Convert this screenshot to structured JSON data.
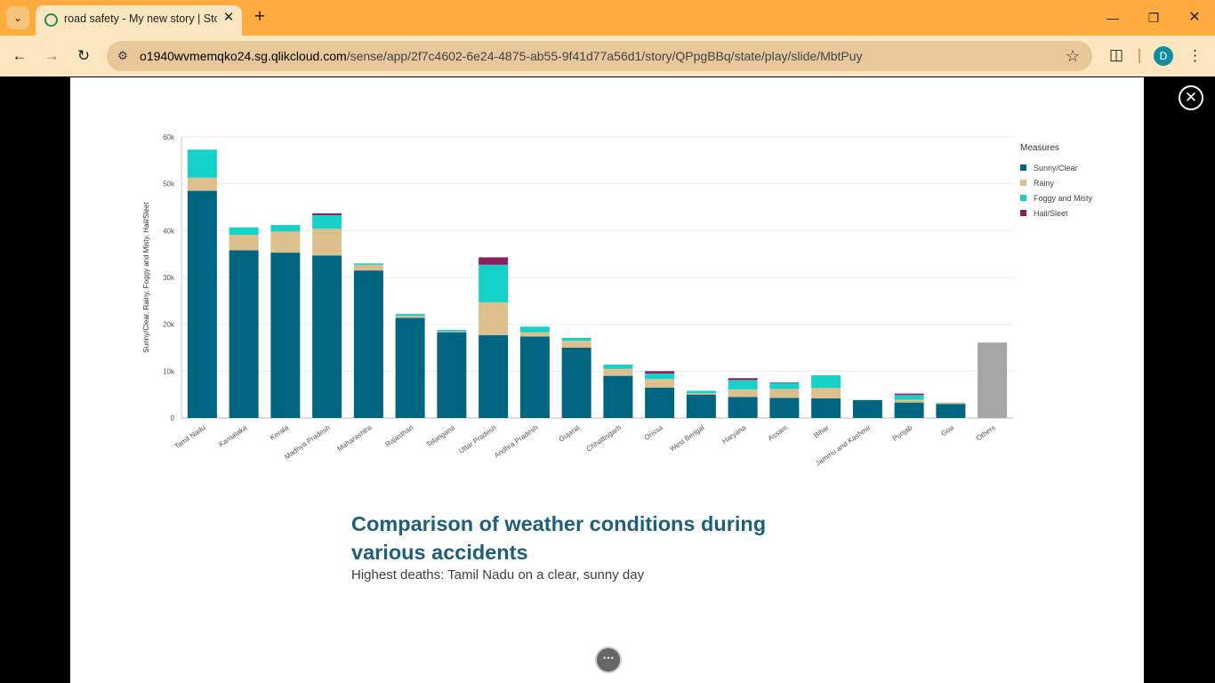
{
  "browser": {
    "tab_title": "road safety - My new story | Sto",
    "url_host": "o1940wvmemqko24.sg.qlikcloud.com",
    "url_path": "/sense/app/2f7c4602-6e24-4875-ab55-9f41d77a56d1/story/QPpgBBq/state/play/slide/MbtPuy",
    "profile_initial": "D"
  },
  "slide": {
    "title": "Comparison of weather conditions during various accidents",
    "subtitle": "Highest deaths: Tamil Nadu on a clear, sunny day"
  },
  "chart_data": {
    "type": "bar",
    "stacked": true,
    "ylabel": "Sunny/Clear, Rainy, Foggy and Misty, Hail/Sleet",
    "xlabel": "",
    "ylim": [
      0,
      60000
    ],
    "yticks": [
      "0",
      "10k",
      "20k",
      "30k",
      "40k",
      "50k",
      "60k"
    ],
    "grid": true,
    "legend_title": "Measures",
    "legend_position": "right",
    "categories": [
      "Tamil Nadu",
      "Karnataka",
      "Kerala",
      "Madhya Pradesh",
      "Maharashtra",
      "Rajasthan",
      "Telangana",
      "Uttar Pradesh",
      "Andhra Pradesh",
      "Gujarat",
      "Chhattisgarh",
      "Orissa",
      "West Bengal",
      "Haryana",
      "Assam",
      "Bihar",
      "Jammu and Kashmir",
      "Punjab",
      "Goa",
      "Others"
    ],
    "series": [
      {
        "name": "Sunny/Clear",
        "color": "#006580",
        "values": [
          48500,
          35800,
          35300,
          34700,
          31500,
          21400,
          18300,
          17700,
          17400,
          15000,
          9000,
          6500,
          5000,
          4500,
          4300,
          4200,
          3800,
          3300,
          3000,
          null
        ]
      },
      {
        "name": "Rainy",
        "color": "#ddbf8e",
        "values": [
          2800,
          3300,
          4500,
          5700,
          1200,
          400,
          200,
          7000,
          900,
          1500,
          1500,
          1800,
          300,
          1600,
          1900,
          2200,
          100,
          600,
          300,
          null
        ]
      },
      {
        "name": "Foggy and Misty",
        "color": "#17d0c8",
        "values": [
          6000,
          1600,
          1400,
          2900,
          300,
          400,
          300,
          8000,
          1200,
          600,
          900,
          1200,
          500,
          2000,
          1300,
          2700,
          0,
          1000,
          0,
          null
        ]
      },
      {
        "name": "Hail/Sleet",
        "color": "#8d1f5e",
        "values": [
          0,
          0,
          0,
          400,
          0,
          0,
          0,
          1600,
          0,
          0,
          0,
          500,
          0,
          400,
          100,
          0,
          0,
          300,
          0,
          null
        ]
      }
    ],
    "others": {
      "label": "Others",
      "color": "#a5a5a5",
      "total": 16100
    }
  }
}
